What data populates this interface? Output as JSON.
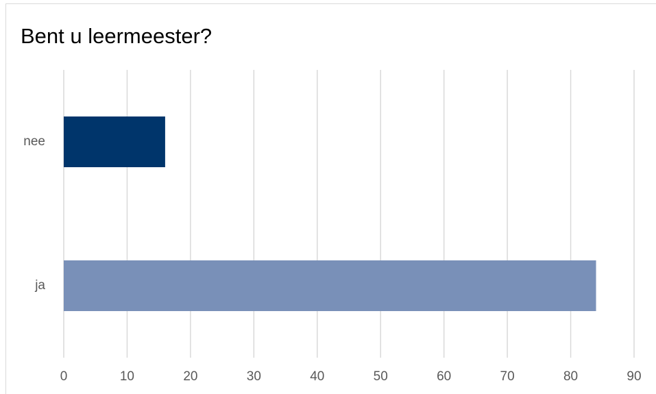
{
  "chart_data": {
    "type": "hbar",
    "title": "Bent u leermeester?",
    "categories": [
      "nee",
      "ja"
    ],
    "values": [
      16,
      84
    ],
    "colors": [
      "#00356b",
      "#7990b8"
    ],
    "xlim": [
      0,
      90
    ],
    "xticks": [
      0,
      10,
      20,
      30,
      40,
      50,
      60,
      70,
      80,
      90
    ],
    "grid": true
  }
}
